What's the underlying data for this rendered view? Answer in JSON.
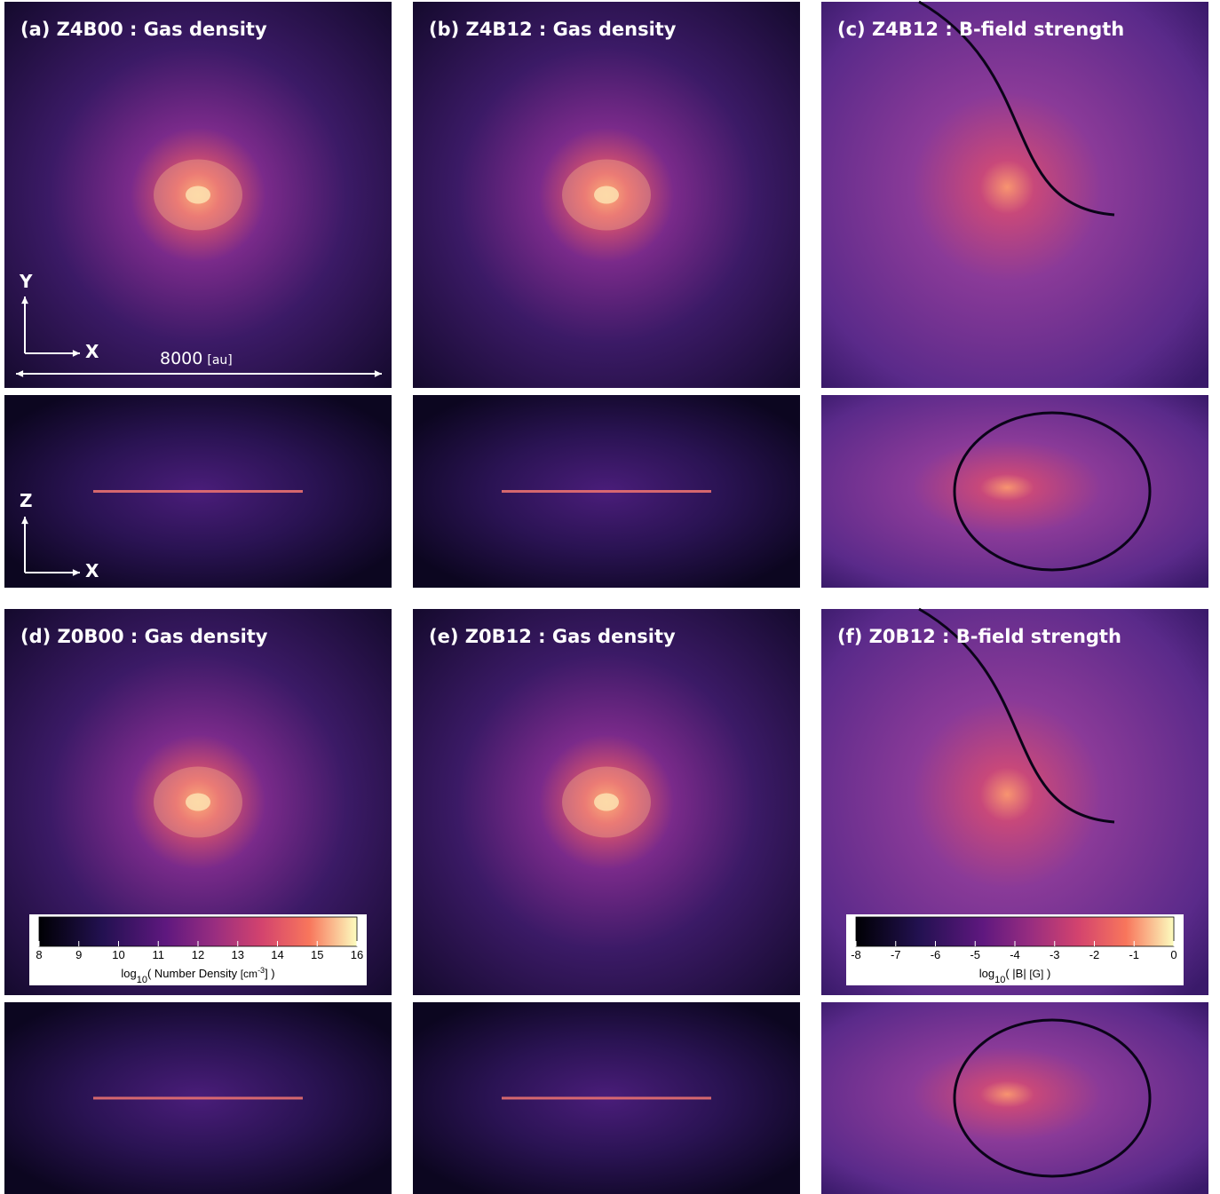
{
  "panels": [
    {
      "title": "(a) Z4B00 : Gas density"
    },
    {
      "title": "(b) Z4B12 : Gas density"
    },
    {
      "title": "(c) Z4B12 : B-field strength"
    },
    {
      "title": "(d) Z0B00 : Gas density"
    },
    {
      "title": "(e) Z0B12 : Gas density"
    },
    {
      "title": "(f) Z0B12 : B-field strength"
    }
  ],
  "axes_face": {
    "y": "Y",
    "x": "X"
  },
  "axes_edge": {
    "z": "Z",
    "x": "X"
  },
  "scale_bar": {
    "value": "8000",
    "unit": "[au]"
  },
  "colorbars": [
    {
      "ticks": [
        8,
        9,
        10,
        11,
        12,
        13,
        14,
        15,
        16
      ],
      "label": [
        "log",
        "10",
        "( Number Density ",
        "[cm",
        "-3",
        "] )"
      ]
    },
    {
      "ticks": [
        -8,
        -7,
        -6,
        -5,
        -4,
        -3,
        -2,
        -1,
        0
      ],
      "label": [
        "log",
        "10",
        "( |B| ",
        "[G]",
        " )"
      ]
    }
  ]
}
